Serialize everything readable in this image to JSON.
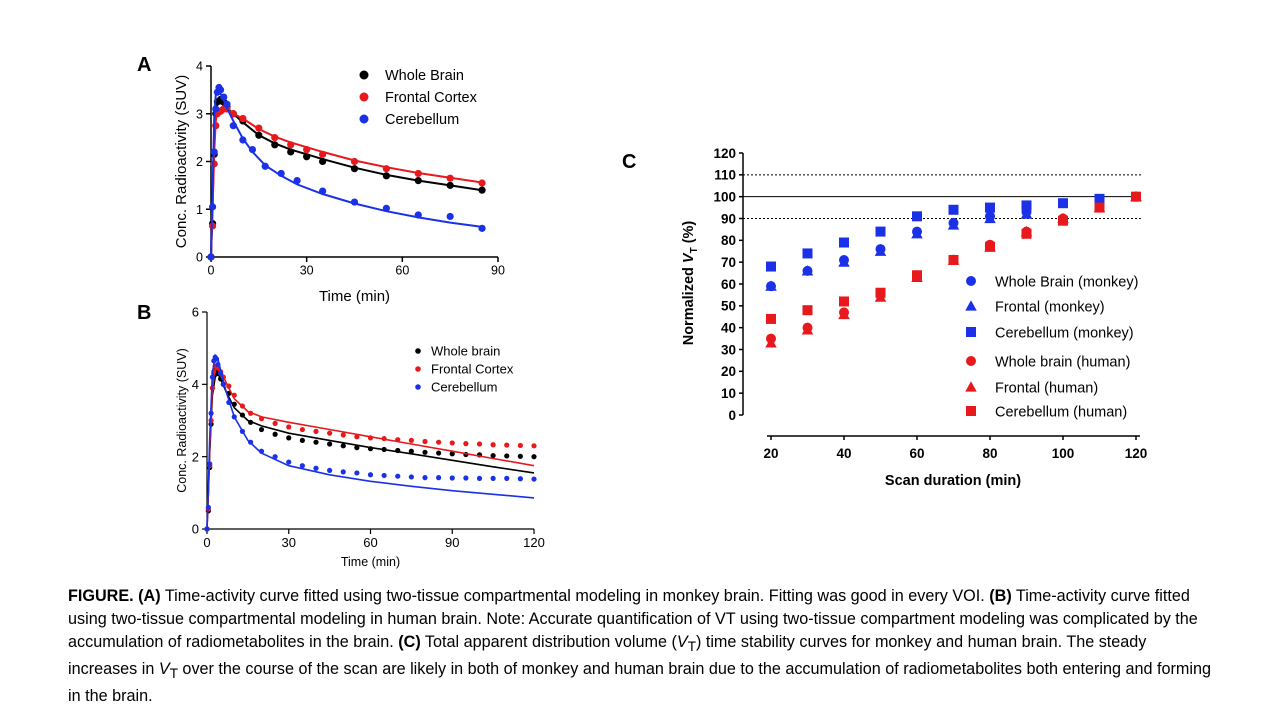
{
  "panels": {
    "a": {
      "letter": "A"
    },
    "b": {
      "letter": "B"
    },
    "c": {
      "letter": "C"
    }
  },
  "caption": {
    "a_tag": "FIGURE. (A)",
    "a_text": " Time-activity curve fitted using two-tissue compartmental modeling in monkey brain. Fitting was good in every VOI. ",
    "b_tag": "(B)",
    "b_text": " Time-activity curve fitted using two-tissue compartmental modeling in human brain. Note: Accurate quantification of VT using two-tissue compartment modeling was complicated by the accumulation of radiometabolites in the brain. ",
    "c_tag": "(C)",
    "c_text_1": " Total apparent distribution volume (",
    "vt_italic": "V",
    "vt_sub": "T",
    "c_text_2": ") time stability curves for monkey and human brain. The steady increases in ",
    "c_text_3": " over the course of the scan are likely in both of monkey and human brain due to the accumulation of radiometabolites both entering and forming in the brain."
  },
  "chart_data": [
    {
      "panel": "A",
      "type": "scatter",
      "title": "",
      "xlabel": "Time (min)",
      "ylabel": "Conc. Radioactivity (SUV)",
      "xlim": [
        0,
        90
      ],
      "ylim": [
        0,
        4
      ],
      "xticks": [
        0,
        30,
        60,
        90
      ],
      "yticks": [
        0,
        1,
        2,
        3,
        4
      ],
      "legend_position": "top-right",
      "series": [
        {
          "name": "Whole Brain",
          "color": "#000000",
          "x": [
            0,
            0.5,
            1,
            1.5,
            2,
            3,
            4,
            5,
            7,
            10,
            15,
            20,
            25,
            30,
            35,
            45,
            55,
            65,
            75,
            85
          ],
          "y": [
            0,
            0.7,
            2.15,
            3.0,
            3.25,
            3.3,
            3.25,
            3.15,
            3.0,
            2.85,
            2.55,
            2.35,
            2.2,
            2.1,
            2.0,
            1.85,
            1.7,
            1.6,
            1.5,
            1.4
          ],
          "fit_y": [
            0,
            1.1,
            2.4,
            3.0,
            3.2,
            3.22,
            3.18,
            3.12,
            3.0,
            2.82,
            2.55,
            2.38,
            2.25,
            2.15,
            2.05,
            1.87,
            1.72,
            1.6,
            1.5,
            1.4
          ]
        },
        {
          "name": "Frontal Cortex",
          "color": "#e8191c",
          "x": [
            0,
            0.5,
            1,
            1.5,
            2,
            3,
            4,
            5,
            7,
            10,
            15,
            20,
            25,
            30,
            35,
            45,
            55,
            65,
            75,
            85
          ],
          "y": [
            0,
            0.65,
            1.95,
            2.75,
            3.0,
            3.05,
            3.1,
            3.1,
            3.0,
            2.9,
            2.7,
            2.5,
            2.35,
            2.25,
            2.15,
            2.0,
            1.85,
            1.75,
            1.65,
            1.55
          ],
          "fit_y": [
            0,
            1.0,
            2.2,
            2.85,
            3.05,
            3.12,
            3.1,
            3.08,
            3.0,
            2.9,
            2.68,
            2.52,
            2.4,
            2.3,
            2.2,
            2.02,
            1.88,
            1.76,
            1.66,
            1.56
          ]
        },
        {
          "name": "Cerebellum",
          "color": "#1a31e8",
          "x": [
            0,
            0.5,
            1,
            1.5,
            2,
            2.5,
            3,
            4,
            5,
            7,
            10,
            13,
            17,
            22,
            27,
            35,
            45,
            55,
            65,
            75,
            85
          ],
          "y": [
            0,
            1.05,
            2.2,
            3.1,
            3.45,
            3.55,
            3.5,
            3.35,
            3.2,
            2.75,
            2.45,
            2.25,
            1.9,
            1.75,
            1.6,
            1.38,
            1.15,
            1.02,
            0.88,
            0.85,
            0.6
          ],
          "fit_y": [
            0,
            1.4,
            2.9,
            3.4,
            3.5,
            3.48,
            3.42,
            3.28,
            3.12,
            2.85,
            2.48,
            2.2,
            1.92,
            1.7,
            1.52,
            1.32,
            1.12,
            0.96,
            0.83,
            0.72,
            0.63
          ]
        }
      ]
    },
    {
      "panel": "B",
      "type": "scatter",
      "title": "",
      "xlabel": "Time (min)",
      "ylabel": "Conc. Radioactivity (SUV)",
      "xlim": [
        0,
        120
      ],
      "ylim": [
        0,
        6
      ],
      "xticks": [
        0,
        30,
        60,
        90,
        120
      ],
      "yticks": [
        0,
        2,
        4,
        6
      ],
      "legend_position": "top-right",
      "series": [
        {
          "name": "Whole brain",
          "color": "#000000",
          "x": [
            0,
            0.5,
            1,
            1.5,
            2,
            2.5,
            3,
            3.5,
            4,
            5,
            6,
            8,
            10,
            13,
            16,
            20,
            25,
            30,
            35,
            40,
            45,
            50,
            55,
            60,
            65,
            70,
            75,
            80,
            85,
            90,
            95,
            100,
            105,
            110,
            115,
            120
          ],
          "y": [
            0,
            0.5,
            1.7,
            2.9,
            3.9,
            4.3,
            4.4,
            4.35,
            4.3,
            4.15,
            4.0,
            3.75,
            3.45,
            3.15,
            2.95,
            2.75,
            2.62,
            2.52,
            2.45,
            2.4,
            2.35,
            2.3,
            2.25,
            2.22,
            2.2,
            2.17,
            2.15,
            2.12,
            2.1,
            2.08,
            2.06,
            2.05,
            2.03,
            2.02,
            2.01,
            2.0
          ],
          "fit_x": [
            0,
            0.5,
            1,
            2,
            3,
            4,
            5,
            7,
            10,
            15,
            20,
            30,
            45,
            60,
            75,
            90,
            105,
            120
          ],
          "fit_y": [
            0,
            1.0,
            2.1,
            3.7,
            4.2,
            4.3,
            4.15,
            3.8,
            3.35,
            3.0,
            2.85,
            2.65,
            2.45,
            2.25,
            2.08,
            1.9,
            1.72,
            1.55
          ]
        },
        {
          "name": "Frontal Cortex",
          "color": "#e8191c",
          "x": [
            0,
            0.5,
            1,
            1.5,
            2,
            2.5,
            3,
            3.5,
            4,
            5,
            6,
            8,
            10,
            13,
            16,
            20,
            25,
            30,
            35,
            40,
            45,
            50,
            55,
            60,
            65,
            70,
            75,
            80,
            85,
            90,
            95,
            100,
            105,
            110,
            115,
            120
          ],
          "y": [
            0,
            0.55,
            1.75,
            3.0,
            3.9,
            4.35,
            4.5,
            4.5,
            4.45,
            4.35,
            4.2,
            3.95,
            3.7,
            3.4,
            3.2,
            3.05,
            2.92,
            2.82,
            2.75,
            2.7,
            2.65,
            2.6,
            2.55,
            2.52,
            2.5,
            2.47,
            2.45,
            2.42,
            2.4,
            2.38,
            2.36,
            2.35,
            2.33,
            2.32,
            2.31,
            2.3
          ],
          "fit_x": [
            0,
            0.5,
            1,
            2,
            3,
            4,
            5,
            7,
            10,
            15,
            20,
            30,
            45,
            60,
            75,
            90,
            105,
            120
          ],
          "fit_y": [
            0,
            1.0,
            2.2,
            3.9,
            4.4,
            4.5,
            4.4,
            4.05,
            3.6,
            3.25,
            3.1,
            2.95,
            2.75,
            2.55,
            2.35,
            2.15,
            1.95,
            1.75
          ]
        },
        {
          "name": "Cerebellum",
          "color": "#1a31e8",
          "x": [
            0,
            0.5,
            1,
            1.5,
            2,
            2.5,
            3,
            3.5,
            4,
            5,
            6,
            8,
            10,
            13,
            16,
            20,
            25,
            30,
            35,
            40,
            45,
            50,
            55,
            60,
            65,
            70,
            75,
            80,
            85,
            90,
            95,
            100,
            105,
            110,
            115,
            120
          ],
          "y": [
            0,
            0.6,
            1.8,
            3.2,
            4.2,
            4.65,
            4.75,
            4.7,
            4.55,
            4.3,
            4.0,
            3.5,
            3.1,
            2.7,
            2.4,
            2.15,
            2.0,
            1.85,
            1.75,
            1.68,
            1.62,
            1.58,
            1.55,
            1.5,
            1.48,
            1.46,
            1.44,
            1.42,
            1.42,
            1.41,
            1.41,
            1.4,
            1.4,
            1.4,
            1.39,
            1.38
          ],
          "fit_x": [
            0,
            0.5,
            1,
            2,
            3,
            4,
            5,
            7,
            10,
            15,
            20,
            30,
            45,
            60,
            75,
            90,
            105,
            120
          ],
          "fit_y": [
            0,
            1.2,
            2.5,
            4.3,
            4.8,
            4.7,
            4.4,
            3.8,
            3.1,
            2.45,
            2.1,
            1.75,
            1.5,
            1.32,
            1.18,
            1.06,
            0.96,
            0.86
          ]
        }
      ]
    },
    {
      "panel": "C",
      "type": "scatter",
      "title": "",
      "xlabel": "Scan duration (min)",
      "ylabel_prefix": "Normalized ",
      "ylabel_v": "V",
      "ylabel_sub": "T",
      "ylabel_suffix": " (%)",
      "xlim": [
        20,
        120
      ],
      "ylim": [
        0,
        120
      ],
      "xticks": [
        20,
        40,
        60,
        80,
        100,
        120
      ],
      "yticks": [
        0,
        10,
        20,
        30,
        40,
        50,
        60,
        70,
        80,
        90,
        100,
        110,
        120
      ],
      "reference_lines": [
        {
          "y": 100,
          "style": "solid"
        },
        {
          "y": 110,
          "style": "dotted"
        },
        {
          "y": 90,
          "style": "dotted"
        }
      ],
      "legend_position": "bottom-right",
      "series": [
        {
          "name": "Whole Brain (monkey)",
          "color": "#1a31e8",
          "marker": "circle",
          "x": [
            20,
            30,
            40,
            50,
            60,
            70,
            80,
            90
          ],
          "y": [
            59,
            66,
            71,
            76,
            84,
            88,
            91,
            93
          ]
        },
        {
          "name": "Frontal (monkey)",
          "color": "#1a31e8",
          "marker": "triangle",
          "x": [
            20,
            30,
            40,
            50,
            60,
            70,
            80,
            90
          ],
          "y": [
            59,
            66,
            70,
            75,
            83,
            87,
            90,
            92
          ]
        },
        {
          "name": "Cerebellum (monkey)",
          "color": "#1a31e8",
          "marker": "square",
          "x": [
            20,
            30,
            40,
            50,
            60,
            70,
            80,
            90,
            100,
            110
          ],
          "y": [
            68,
            74,
            79,
            84,
            91,
            94,
            95,
            96,
            97,
            99
          ]
        },
        {
          "name": "Whole brain (human)",
          "color": "#e8191c",
          "marker": "circle",
          "x": [
            20,
            30,
            40,
            50,
            60,
            70,
            80,
            90,
            100,
            110,
            120
          ],
          "y": [
            35,
            40,
            47,
            55,
            64,
            71,
            78,
            84,
            90,
            95,
            100
          ]
        },
        {
          "name": "Frontal (human)",
          "color": "#e8191c",
          "marker": "triangle",
          "x": [
            20,
            30,
            40,
            50,
            60,
            70,
            80,
            90,
            100,
            110,
            120
          ],
          "y": [
            33,
            39,
            46,
            54,
            63,
            71,
            77,
            84,
            90,
            95,
            100
          ]
        },
        {
          "name": "Cerebellum (human)",
          "color": "#e8191c",
          "marker": "square",
          "x": [
            20,
            30,
            40,
            50,
            60,
            70,
            80,
            90,
            100,
            110,
            120
          ],
          "y": [
            44,
            48,
            52,
            56,
            64,
            71,
            77,
            83,
            89,
            95,
            100
          ]
        }
      ]
    }
  ]
}
